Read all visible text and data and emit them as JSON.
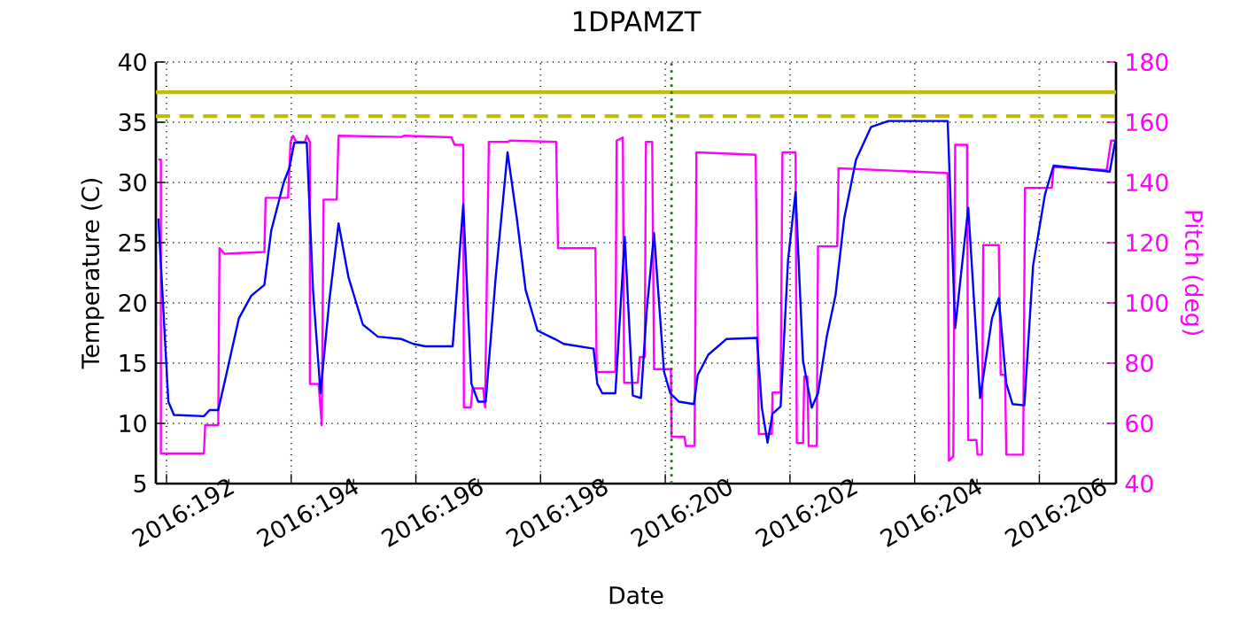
{
  "chart_data": {
    "type": "line",
    "title": "1DPAMZT",
    "xlabel": "Date",
    "ylabel": "Temperature (C)",
    "y2label": "Pitch (deg)",
    "xlim": [
      "2016-07-09T19:55",
      "2016-07-25T05:31"
    ],
    "xticks": [
      {
        "value": "2016-07-10",
        "label": "2016:192"
      },
      {
        "value": "2016-07-11",
        "label": null
      },
      {
        "value": "2016-07-12",
        "label": "2016:194"
      },
      {
        "value": "2016-07-13",
        "label": null
      },
      {
        "value": "2016-07-14",
        "label": "2016:196"
      },
      {
        "value": "2016-07-15",
        "label": null
      },
      {
        "value": "2016-07-16",
        "label": "2016:198"
      },
      {
        "value": "2016-07-17",
        "label": null
      },
      {
        "value": "2016-07-18",
        "label": "2016:200"
      },
      {
        "value": "2016-07-19",
        "label": null
      },
      {
        "value": "2016-07-20",
        "label": "2016:202"
      },
      {
        "value": "2016-07-21",
        "label": null
      },
      {
        "value": "2016-07-22",
        "label": "2016:204"
      },
      {
        "value": "2016-07-23",
        "label": null
      },
      {
        "value": "2016-07-24",
        "label": "2016:206"
      },
      {
        "value": "2016-07-25",
        "label": null
      }
    ],
    "ylim": [
      5,
      40
    ],
    "yticks": [
      5,
      10,
      15,
      20,
      25,
      30,
      35,
      40
    ],
    "y2lim": [
      40,
      180
    ],
    "y2ticks": [
      40,
      60,
      80,
      100,
      120,
      140,
      160,
      180
    ],
    "grid": true,
    "series": [
      {
        "color": "#0000ff",
        "x": [
          "2016-07-09T20:53",
          "2016-07-10T00:43",
          "2016-07-10T02:53",
          "2016-07-10T14:24",
          "2016-07-10T16:34",
          "2016-07-10T19:55",
          "2016-07-10T23:17",
          "2016-07-11T03:50",
          "2016-07-11T08:38",
          "2016-07-11T13:41",
          "2016-07-11T16:19",
          "2016-07-11T21:07",
          "2016-07-11T23:17",
          "2016-07-12T01:12",
          "2016-07-12T06:00",
          "2016-07-12T08:24",
          "2016-07-12T11:17",
          "2016-07-12T14:38",
          "2016-07-12T18:14",
          "2016-07-12T22:05",
          "2016-07-13T03:36",
          "2016-07-13T09:22",
          "2016-07-13T18:29",
          "2016-07-13T23:02",
          "2016-07-14T03:36",
          "2016-07-14T14:10",
          "2016-07-14T18:14",
          "2016-07-14T21:22",
          "2016-07-15T00:00",
          "2016-07-15T02:53",
          "2016-07-15T06:43",
          "2016-07-15T11:17",
          "2016-07-15T14:53",
          "2016-07-15T18:14",
          "2016-07-15T22:48",
          "2016-07-16T05:31",
          "2016-07-16T08:53",
          "2016-07-16T20:24",
          "2016-07-16T21:50",
          "2016-07-16T23:46",
          "2016-07-17T04:48",
          "2016-07-17T08:24",
          "2016-07-17T11:31",
          "2016-07-17T14:38",
          "2016-07-17T16:48",
          "2016-07-17T19:41",
          "2016-07-17T23:31",
          "2016-07-18T01:55",
          "2016-07-18T05:17",
          "2016-07-18T11:02",
          "2016-07-18T12:29",
          "2016-07-18T16:34",
          "2016-07-18T23:31",
          "2016-07-19T11:17",
          "2016-07-19T13:12",
          "2016-07-19T15:22",
          "2016-07-19T17:17",
          "2016-07-19T20:24",
          "2016-07-19T23:17",
          "2016-07-20T02:10",
          "2016-07-20T05:02",
          "2016-07-20T08:24",
          "2016-07-20T10:48",
          "2016-07-20T14:10",
          "2016-07-20T17:31",
          "2016-07-20T20:53",
          "2016-07-21T01:26",
          "2016-07-21T07:12",
          "2016-07-21T13:55",
          "2016-07-22T12:43",
          "2016-07-22T15:36",
          "2016-07-22T20:38",
          "2016-07-23T01:12",
          "2016-07-23T05:46",
          "2016-07-23T08:24",
          "2016-07-23T11:17",
          "2016-07-23T13:41",
          "2016-07-23T18:14",
          "2016-07-23T21:36",
          "2016-07-24T02:10",
          "2016-07-24T05:31",
          "2016-07-25T03:07",
          "2016-07-25T05:17"
        ],
        "values": [
          27.0,
          11.8,
          10.7,
          10.6,
          11.1,
          11.1,
          14.3,
          18.7,
          20.6,
          21.5,
          26.0,
          30.0,
          31.2,
          33.3,
          33.3,
          21.1,
          12.5,
          20.1,
          26.6,
          22.1,
          18.2,
          17.2,
          17.0,
          16.6,
          16.4,
          16.4,
          28.2,
          13.3,
          11.8,
          11.8,
          22.1,
          32.5,
          27.0,
          21.1,
          17.7,
          17.0,
          16.6,
          16.2,
          13.3,
          12.5,
          12.5,
          25.5,
          12.3,
          12.1,
          19.2,
          25.8,
          14.3,
          12.5,
          11.8,
          11.6,
          14.0,
          15.7,
          17.0,
          17.1,
          11.3,
          8.4,
          10.8,
          11.4,
          23.6,
          29.2,
          15.2,
          11.3,
          12.5,
          17.2,
          20.6,
          27.0,
          31.9,
          34.6,
          35.1,
          35.1,
          17.9,
          27.9,
          12.1,
          18.7,
          20.4,
          13.3,
          11.6,
          11.5,
          23.1,
          29.0,
          31.4,
          30.9,
          33.5
        ]
      },
      {
        "color": "#ff00ff",
        "axis": "y2",
        "x": [
          "2016-07-09T20:53",
          "2016-07-09T21:50",
          "2016-07-09T21:50",
          "2016-07-10T14:24",
          "2016-07-10T14:53",
          "2016-07-10T19:55",
          "2016-07-10T20:24",
          "2016-07-10T22:19",
          "2016-07-11T13:41",
          "2016-07-11T14:10",
          "2016-07-11T22:48",
          "2016-07-11T23:46",
          "2016-07-12T00:43",
          "2016-07-12T01:55",
          "2016-07-12T05:17",
          "2016-07-12T06:00",
          "2016-07-12T07:12",
          "2016-07-12T07:12",
          "2016-07-12T10:34",
          "2016-07-12T11:46",
          "2016-07-12T12:29",
          "2016-07-12T17:31",
          "2016-07-12T18:14",
          "2016-07-13T18:29",
          "2016-07-13T19:26",
          "2016-07-14T13:41",
          "2016-07-14T14:53",
          "2016-07-14T18:14",
          "2016-07-14T18:29",
          "2016-07-14T21:07",
          "2016-07-14T21:50",
          "2016-07-15T01:55",
          "2016-07-15T02:38",
          "2016-07-15T04:05",
          "2016-07-15T11:17",
          "2016-07-15T12:29",
          "2016-07-16T06:00",
          "2016-07-16T06:43",
          "2016-07-16T21:07",
          "2016-07-16T21:36",
          "2016-07-17T04:48",
          "2016-07-17T05:17",
          "2016-07-17T07:41",
          "2016-07-17T08:10",
          "2016-07-17T13:26",
          "2016-07-17T14:10",
          "2016-07-17T16:05",
          "2016-07-17T16:34",
          "2016-07-17T18:58",
          "2016-07-17T19:41",
          "2016-07-18T02:10",
          "2016-07-18T02:24",
          "2016-07-18T07:26",
          "2016-07-18T07:55",
          "2016-07-18T11:17",
          "2016-07-18T12:00",
          "2016-07-19T10:48",
          "2016-07-19T12:00",
          "2016-07-19T17:02",
          "2016-07-19T17:17",
          "2016-07-19T20:24",
          "2016-07-19T21:07",
          "2016-07-20T02:10",
          "2016-07-20T02:38",
          "2016-07-20T05:02",
          "2016-07-20T05:31",
          "2016-07-20T06:43",
          "2016-07-20T07:12",
          "2016-07-20T10:19",
          "2016-07-20T10:48",
          "2016-07-20T18:14",
          "2016-07-20T18:43",
          "2016-07-22T12:43",
          "2016-07-22T13:12",
          "2016-07-22T14:53",
          "2016-07-22T15:36",
          "2016-07-22T20:10",
          "2016-07-22T20:38",
          "2016-07-22T23:46",
          "2016-07-23T00:14",
          "2016-07-23T01:55",
          "2016-07-23T02:24",
          "2016-07-23T08:24",
          "2016-07-23T09:07",
          "2016-07-23T10:48",
          "2016-07-23T11:17",
          "2016-07-23T17:46",
          "2016-07-23T18:29",
          "2016-07-24T04:48",
          "2016-07-24T05:31",
          "2016-07-25T01:55",
          "2016-07-25T03:36",
          "2016-07-25T05:17"
        ],
        "values": [
          147.6,
          147.6,
          50,
          50,
          59.4,
          59.4,
          118.2,
          116.3,
          116.9,
          134.9,
          134.9,
          153.5,
          155.5,
          153.5,
          153.5,
          155.5,
          153.5,
          73.1,
          73.1,
          59.4,
          134.3,
          134.3,
          155.5,
          155.1,
          155.5,
          155.0,
          152.5,
          152.5,
          65.3,
          65.3,
          71.6,
          71.6,
          65.3,
          153.5,
          153.5,
          153.9,
          153.5,
          118.2,
          118.2,
          77.1,
          77.1,
          153.9,
          154.9,
          73.5,
          73.5,
          82,
          82,
          153.5,
          153.5,
          78,
          78,
          55.5,
          55.5,
          52.5,
          52.5,
          150,
          149.2,
          56.5,
          56.5,
          70.2,
          70.2,
          150,
          150,
          53.5,
          53.5,
          75.5,
          75.5,
          52.5,
          52.5,
          118.8,
          118.8,
          144.7,
          143.1,
          47.6,
          49,
          152.5,
          152.5,
          54.5,
          54.5,
          49.6,
          49.6,
          119.2,
          119.2,
          76.1,
          76.1,
          49.6,
          49.6,
          138.2,
          138.2,
          145.1,
          144.1,
          153.9,
          153.9
        ]
      }
    ],
    "ref_lines": [
      {
        "axis": "y",
        "value": 37.5,
        "color": "#bfbf00",
        "line_style": "solid"
      },
      {
        "axis": "y",
        "value": 35.5,
        "color": "#bfbf00",
        "line_style": "dashed"
      },
      {
        "axis": "x",
        "value": "2016-07-18T02:24",
        "color": "#008000",
        "line_style": "dotted"
      }
    ]
  }
}
